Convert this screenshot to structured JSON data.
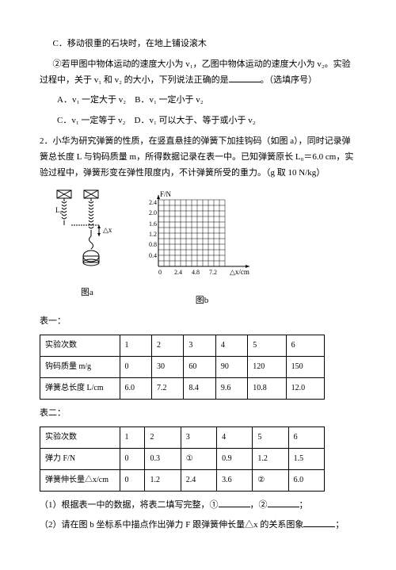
{
  "lineC": "C．移动很重的石块时，在地上铺设滚木",
  "q2a": "②若甲图中物体运动的速度大小为 v₁，乙图中物体运动的速度大小为 v₂。实验过程中，关于 v₁ 和 v₂ 的大小，下列说法正确的是",
  "q2a_tail": "。（选填序号）",
  "optA": "A．v₁ 一定大于 v₂",
  "optB": "B．v₁ 一定小于 v₂",
  "optC": "C．v₁ 一定等于 v₂",
  "optD": "D．v₁ 可以大于、等于或小于 v₂",
  "q2": "2．小华为研究弹簧的性质，在竖直悬挂的弹簧下加挂钩码（如图 a），同时记录弹簧总长度 L 与钩码质量 m，所得数据记录在表一中。已知弹簧原长 L₀＝6.0 cm，实验过程中，弹簧形变在弹性限度内，不计弹簧所受的重力。（g 取 10 N/kg）",
  "figA": {
    "L0": "L₀",
    "dx": "△x",
    "label": "图a"
  },
  "figB": {
    "ylabel": "F/N",
    "xlabel": "△x/cm",
    "yticks": [
      "0.4",
      "0.8",
      "1.2",
      "1.6",
      "2.0",
      "2.4"
    ],
    "xticks": [
      "0",
      "2.4",
      "4.8",
      "7.2"
    ],
    "label": "图b",
    "grid_rows": 12,
    "grid_cols": 12,
    "grid_color": "#000"
  },
  "t1_title": "表一：",
  "t1": {
    "r1": [
      "实验次数",
      "1",
      "2",
      "3",
      "4",
      "5",
      "6"
    ],
    "r2": [
      "钩码质量 m/g",
      "0",
      "30",
      "60",
      "90",
      "120",
      "150"
    ],
    "r3": [
      "弹簧总长度 L/cm",
      "6.0",
      "7.2",
      "8.4",
      "9.6",
      "10.8",
      "12.0"
    ]
  },
  "t2_title": "表二：",
  "t2": {
    "r1": [
      "实验次数",
      "1",
      "2",
      "3",
      "4",
      "5",
      "6"
    ],
    "r2": [
      "弹力 F/N",
      "0",
      "0.3",
      "①",
      "0.9",
      "1.2",
      "1.5"
    ],
    "r3": [
      "弹簧伸长量△x/cm",
      "0",
      "1.2",
      "2.4",
      "3.6",
      "②",
      "6.0"
    ]
  },
  "q_1": "（1）根据表一中的数据，将表二填写完整，①",
  "q_1m": "，②",
  "q_1e": "；",
  "q_2": "（2）请在图 b 坐标系中描点作出弹力 F 跟弹簧伸长量△x 的关系图象",
  "q_2e": "；"
}
